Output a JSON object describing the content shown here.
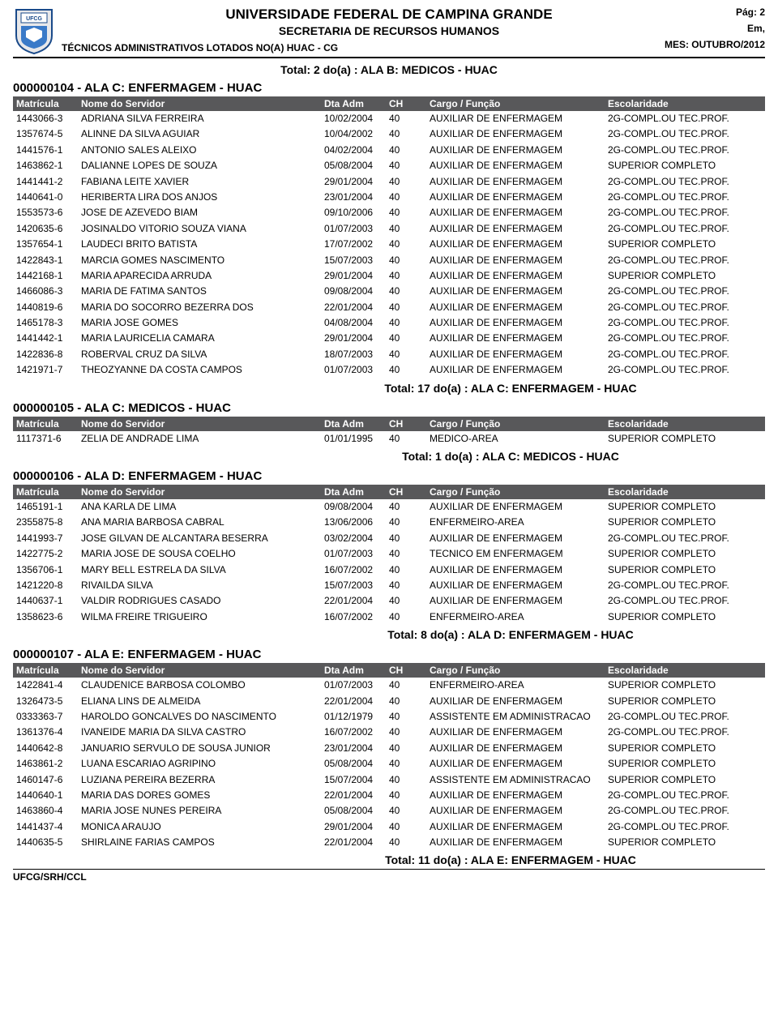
{
  "header": {
    "university": "UNIVERSIDADE FEDERAL DE CAMPINA GRANDE",
    "department": "SECRETARIA DE RECURSOS HUMANOS",
    "report_title": "TÉCNICOS ADMINISTRATIVOS LOTADOS NO(A) HUAC - CG",
    "page_label": "Pág: 2",
    "em_label": "Em,",
    "month_label": "MES: OUTUBRO/2012"
  },
  "top_total": "Total: 2 do(a) : ALA B: MEDICOS - HUAC",
  "column_headers": {
    "matricula": "Matrícula",
    "nome": "Nome do Servidor",
    "dta": "Dta Adm",
    "ch": "CH",
    "cargo": "Cargo  /  Função",
    "esc": "Escolaridade"
  },
  "esc_map": {
    "2G": "2G-COMPL.OU TEC.PROF.",
    "SC": "SUPERIOR COMPLETO"
  },
  "sections": [
    {
      "title": "000000104 - ALA C: ENFERMAGEM - HUAC",
      "rows": [
        {
          "mat": "1443066-3",
          "nome": "ADRIANA SILVA FERREIRA",
          "dta": "10/02/2004",
          "ch": "40",
          "cargo": "AUXILIAR DE ENFERMAGEM",
          "esc": "2G"
        },
        {
          "mat": "1357674-5",
          "nome": "ALINNE DA SILVA AGUIAR",
          "dta": "10/04/2002",
          "ch": "40",
          "cargo": "AUXILIAR DE ENFERMAGEM",
          "esc": "2G"
        },
        {
          "mat": "1441576-1",
          "nome": "ANTONIO SALES ALEIXO",
          "dta": "04/02/2004",
          "ch": "40",
          "cargo": "AUXILIAR DE ENFERMAGEM",
          "esc": "2G"
        },
        {
          "mat": "1463862-1",
          "nome": "DALIANNE LOPES DE SOUZA",
          "dta": "05/08/2004",
          "ch": "40",
          "cargo": "AUXILIAR DE ENFERMAGEM",
          "esc": "SC"
        },
        {
          "mat": "1441441-2",
          "nome": "FABIANA LEITE XAVIER",
          "dta": "29/01/2004",
          "ch": "40",
          "cargo": "AUXILIAR DE ENFERMAGEM",
          "esc": "2G"
        },
        {
          "mat": "1440641-0",
          "nome": "HERIBERTA LIRA DOS ANJOS",
          "dta": "23/01/2004",
          "ch": "40",
          "cargo": "AUXILIAR DE ENFERMAGEM",
          "esc": "2G"
        },
        {
          "mat": "1553573-6",
          "nome": "JOSE DE AZEVEDO BIAM",
          "dta": "09/10/2006",
          "ch": "40",
          "cargo": "AUXILIAR DE ENFERMAGEM",
          "esc": "2G"
        },
        {
          "mat": "1420635-6",
          "nome": "JOSINALDO VITORIO SOUZA VIANA",
          "dta": "01/07/2003",
          "ch": "40",
          "cargo": "AUXILIAR DE ENFERMAGEM",
          "esc": "2G"
        },
        {
          "mat": "1357654-1",
          "nome": "LAUDECI BRITO BATISTA",
          "dta": "17/07/2002",
          "ch": "40",
          "cargo": "AUXILIAR DE ENFERMAGEM",
          "esc": "SC"
        },
        {
          "mat": "1422843-1",
          "nome": "MARCIA GOMES NASCIMENTO",
          "dta": "15/07/2003",
          "ch": "40",
          "cargo": "AUXILIAR DE ENFERMAGEM",
          "esc": "2G"
        },
        {
          "mat": "1442168-1",
          "nome": "MARIA APARECIDA ARRUDA",
          "dta": "29/01/2004",
          "ch": "40",
          "cargo": "AUXILIAR DE ENFERMAGEM",
          "esc": "SC"
        },
        {
          "mat": "1466086-3",
          "nome": "MARIA DE FATIMA SANTOS",
          "dta": "09/08/2004",
          "ch": "40",
          "cargo": "AUXILIAR DE ENFERMAGEM",
          "esc": "2G"
        },
        {
          "mat": "1440819-6",
          "nome": "MARIA DO SOCORRO BEZERRA DOS",
          "dta": "22/01/2004",
          "ch": "40",
          "cargo": "AUXILIAR DE ENFERMAGEM",
          "esc": "2G"
        },
        {
          "mat": "1465178-3",
          "nome": "MARIA JOSE GOMES",
          "dta": "04/08/2004",
          "ch": "40",
          "cargo": "AUXILIAR DE ENFERMAGEM",
          "esc": "2G"
        },
        {
          "mat": "1441442-1",
          "nome": "MARIA LAURICELIA CAMARA",
          "dta": "29/01/2004",
          "ch": "40",
          "cargo": "AUXILIAR DE ENFERMAGEM",
          "esc": "2G"
        },
        {
          "mat": "1422836-8",
          "nome": "ROBERVAL CRUZ DA SILVA",
          "dta": "18/07/2003",
          "ch": "40",
          "cargo": "AUXILIAR DE ENFERMAGEM",
          "esc": "2G"
        },
        {
          "mat": "1421971-7",
          "nome": "THEOZYANNE DA COSTA CAMPOS",
          "dta": "01/07/2003",
          "ch": "40",
          "cargo": "AUXILIAR DE ENFERMAGEM",
          "esc": "2G"
        }
      ],
      "total": "Total: 17 do(a) : ALA C: ENFERMAGEM - HUAC"
    },
    {
      "title": "000000105 - ALA C: MEDICOS - HUAC",
      "rows": [
        {
          "mat": "1117371-6",
          "nome": "ZELIA DE ANDRADE LIMA",
          "dta": "01/01/1995",
          "ch": "40",
          "cargo": "MEDICO-AREA",
          "esc": "SC"
        }
      ],
      "total": "Total: 1 do(a) : ALA C: MEDICOS - HUAC"
    },
    {
      "title": "000000106 - ALA D: ENFERMAGEM - HUAC",
      "rows": [
        {
          "mat": "1465191-1",
          "nome": "ANA KARLA DE LIMA",
          "dta": "09/08/2004",
          "ch": "40",
          "cargo": "AUXILIAR DE ENFERMAGEM",
          "esc": "SC"
        },
        {
          "mat": "2355875-8",
          "nome": "ANA MARIA BARBOSA CABRAL",
          "dta": "13/06/2006",
          "ch": "40",
          "cargo": "ENFERMEIRO-AREA",
          "esc": "SC"
        },
        {
          "mat": "1441993-7",
          "nome": "JOSE GILVAN DE ALCANTARA BESERRA",
          "dta": "03/02/2004",
          "ch": "40",
          "cargo": "AUXILIAR DE ENFERMAGEM",
          "esc": "2G"
        },
        {
          "mat": "1422775-2",
          "nome": "MARIA JOSE DE SOUSA COELHO",
          "dta": "01/07/2003",
          "ch": "40",
          "cargo": "TECNICO EM ENFERMAGEM",
          "esc": "SC"
        },
        {
          "mat": "1356706-1",
          "nome": "MARY BELL ESTRELA DA SILVA",
          "dta": "16/07/2002",
          "ch": "40",
          "cargo": "AUXILIAR DE ENFERMAGEM",
          "esc": "SC"
        },
        {
          "mat": "1421220-8",
          "nome": "RIVAILDA SILVA",
          "dta": "15/07/2003",
          "ch": "40",
          "cargo": "AUXILIAR DE ENFERMAGEM",
          "esc": "2G"
        },
        {
          "mat": "1440637-1",
          "nome": "VALDIR RODRIGUES CASADO",
          "dta": "22/01/2004",
          "ch": "40",
          "cargo": "AUXILIAR DE ENFERMAGEM",
          "esc": "2G"
        },
        {
          "mat": "1358623-6",
          "nome": "WILMA FREIRE TRIGUEIRO",
          "dta": "16/07/2002",
          "ch": "40",
          "cargo": "ENFERMEIRO-AREA",
          "esc": "SC"
        }
      ],
      "total": "Total: 8 do(a) : ALA D: ENFERMAGEM - HUAC"
    },
    {
      "title": "000000107 - ALA E: ENFERMAGEM - HUAC",
      "rows": [
        {
          "mat": "1422841-4",
          "nome": "CLAUDENICE BARBOSA COLOMBO",
          "dta": "01/07/2003",
          "ch": "40",
          "cargo": "ENFERMEIRO-AREA",
          "esc": "SC"
        },
        {
          "mat": "1326473-5",
          "nome": "ELIANA LINS DE ALMEIDA",
          "dta": "22/01/2004",
          "ch": "40",
          "cargo": "AUXILIAR DE ENFERMAGEM",
          "esc": "SC"
        },
        {
          "mat": "0333363-7",
          "nome": "HAROLDO GONCALVES DO NASCIMENTO",
          "dta": "01/12/1979",
          "ch": "40",
          "cargo": "ASSISTENTE EM ADMINISTRACAO",
          "esc": "2G"
        },
        {
          "mat": "1361376-4",
          "nome": "IVANEIDE MARIA DA SILVA CASTRO",
          "dta": "16/07/2002",
          "ch": "40",
          "cargo": "AUXILIAR DE ENFERMAGEM",
          "esc": "2G"
        },
        {
          "mat": "1440642-8",
          "nome": "JANUARIO SERVULO DE SOUSA JUNIOR",
          "dta": "23/01/2004",
          "ch": "40",
          "cargo": "AUXILIAR DE ENFERMAGEM",
          "esc": "SC"
        },
        {
          "mat": "1463861-2",
          "nome": "LUANA ESCARIAO AGRIPINO",
          "dta": "05/08/2004",
          "ch": "40",
          "cargo": "AUXILIAR DE ENFERMAGEM",
          "esc": "SC"
        },
        {
          "mat": "1460147-6",
          "nome": "LUZIANA PEREIRA BEZERRA",
          "dta": "15/07/2004",
          "ch": "40",
          "cargo": "ASSISTENTE EM ADMINISTRACAO",
          "esc": "SC"
        },
        {
          "mat": "1440640-1",
          "nome": "MARIA DAS DORES GOMES",
          "dta": "22/01/2004",
          "ch": "40",
          "cargo": "AUXILIAR DE ENFERMAGEM",
          "esc": "2G"
        },
        {
          "mat": "1463860-4",
          "nome": "MARIA JOSE NUNES PEREIRA",
          "dta": "05/08/2004",
          "ch": "40",
          "cargo": "AUXILIAR DE ENFERMAGEM",
          "esc": "2G"
        },
        {
          "mat": "1441437-4",
          "nome": "MONICA ARAUJO",
          "dta": "29/01/2004",
          "ch": "40",
          "cargo": "AUXILIAR DE ENFERMAGEM",
          "esc": "2G"
        },
        {
          "mat": "1440635-5",
          "nome": "SHIRLAINE FARIAS CAMPOS",
          "dta": "22/01/2004",
          "ch": "40",
          "cargo": "AUXILIAR DE ENFERMAGEM",
          "esc": "SC"
        }
      ],
      "total": "Total: 11 do(a) : ALA E: ENFERMAGEM - HUAC"
    }
  ],
  "footer": "UFCG/SRH/CCL",
  "colors": {
    "header_bg": "#58585a",
    "header_fg": "#ffffff",
    "text": "#000000",
    "bg": "#ffffff"
  }
}
